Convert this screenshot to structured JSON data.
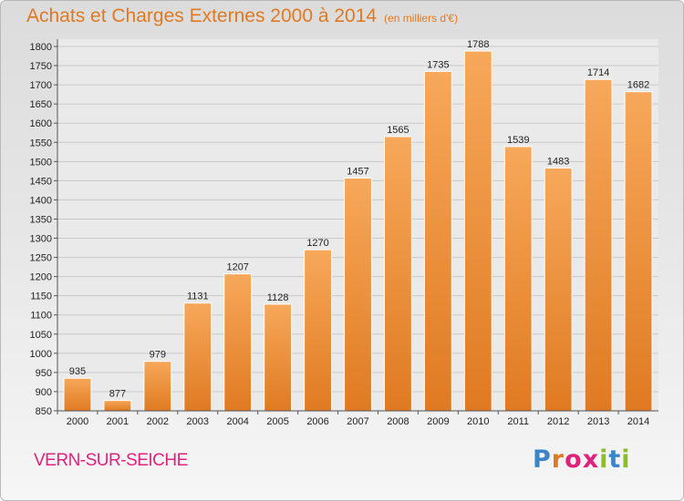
{
  "title": "Achats et Charges Externes 2000 à 2014",
  "unit": "(en milliers d'€)",
  "commune": "VERN-SUR-SEICHE",
  "logo": {
    "letters": [
      "P",
      "r",
      "o",
      "x",
      "i",
      "t",
      "i"
    ],
    "colors": [
      "#3a86c8",
      "#e07a22",
      "#e0227d",
      "#e0227d",
      "#8cbf26",
      "#3a86c8",
      "#8cbf26"
    ]
  },
  "colors": {
    "title": "#e07a22",
    "commune": "#e0227d",
    "bar_light": "#f7a85a",
    "bar_dark": "#e07a22"
  },
  "chart_data": {
    "type": "bar",
    "categories": [
      "2000",
      "2001",
      "2002",
      "2003",
      "2004",
      "2005",
      "2006",
      "2007",
      "2008",
      "2009",
      "2010",
      "2011",
      "2012",
      "2013",
      "2014"
    ],
    "values": [
      935,
      877,
      979,
      1131,
      1207,
      1128,
      1270,
      1457,
      1565,
      1735,
      1788,
      1539,
      1483,
      1714,
      1682
    ],
    "ylim": [
      850,
      1800
    ],
    "yticks": [
      850,
      900,
      950,
      1000,
      1050,
      1100,
      1150,
      1200,
      1250,
      1300,
      1350,
      1400,
      1450,
      1500,
      1550,
      1600,
      1650,
      1700,
      1750,
      1800
    ],
    "grid": true,
    "title": "Achats et Charges Externes 2000 à 2014",
    "xlabel": "",
    "ylabel": ""
  }
}
